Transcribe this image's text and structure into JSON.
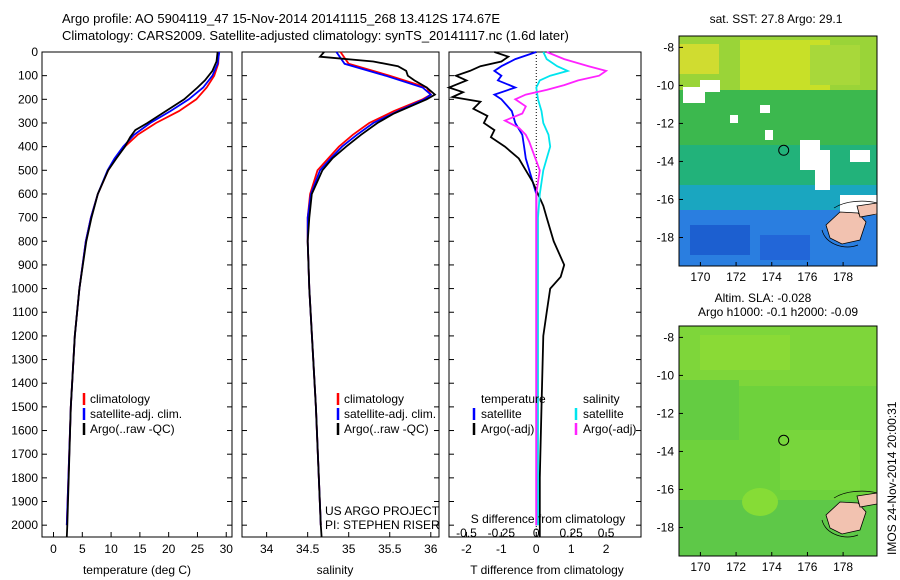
{
  "header": {
    "line1": "Argo profile: AO 5904119_47 15-Nov-2014 20141115_268 13.412S 174.67E",
    "line2": "Climatology: CARS2009. Satellite-adjusted climatology: synTS_20141117.nc (1.6d later)"
  },
  "colors": {
    "climatology": "#ff0000",
    "satellite": "#0000ff",
    "argo": "#000000",
    "sat_salinity": "#00e5ee",
    "argo_salinity_adj": "#ff22ff",
    "land": "#f2c2b0"
  },
  "panels": {
    "temperature": {
      "xlabel": "temperature (deg C)"
    },
    "salinity": {
      "xlabel": "salinity"
    },
    "difference": {
      "top_label": "S difference from climatology",
      "xlabel": "T difference from climatology",
      "project": "US ARGO PROJECT",
      "pi": "PI: STEPHEN RISER"
    }
  },
  "legends": {
    "temperature": [
      "climatology",
      "satellite-adj. clim.",
      "Argo(..raw -QC)"
    ],
    "salinity": [
      "climatology",
      "satellite-adj. clim.",
      "Argo(..raw -QC)"
    ],
    "difference": {
      "temp_head": "temperature",
      "sal_head": "salinity",
      "temp_sat": "satellite",
      "temp_argo": "Argo(-adj)",
      "sal_sat": "satellite",
      "sal_argo": "Argo(-adj)"
    }
  },
  "maps": {
    "sst": {
      "title": "sat. SST: 27.8 Argo: 29.1",
      "profile_lon": 174.67,
      "profile_lat": -13.412
    },
    "sla": {
      "title1": "Altim. SLA: -0.028",
      "title2": "Argo h1000: -0.1 h2000: -0.09",
      "profile_lon": 174.67,
      "profile_lat": -13.412
    },
    "xticks": [
      "170",
      "172",
      "174",
      "176",
      "178"
    ],
    "yticks": [
      "-8",
      "-10",
      "-12",
      "-14",
      "-16",
      "-18"
    ],
    "credit": "IMOS 24-Nov-2014 20:00:31"
  },
  "chart_data": [
    {
      "type": "line",
      "name": "temperature",
      "ylim": [
        0,
        2050
      ],
      "xlim": [
        -2,
        31
      ],
      "yticks": [
        0,
        100,
        200,
        300,
        400,
        500,
        600,
        700,
        800,
        900,
        1000,
        1100,
        1200,
        1300,
        1400,
        1500,
        1600,
        1700,
        1800,
        1900,
        2000
      ],
      "xticks": [
        0,
        5,
        10,
        15,
        20,
        25,
        30
      ],
      "series": [
        {
          "name": "climatology",
          "depth": [
            0,
            50,
            100,
            150,
            200,
            250,
            300,
            350,
            400,
            450,
            500,
            600,
            700,
            800,
            1000,
            1200,
            1500,
            2000
          ],
          "values": [
            28.7,
            28.6,
            27.9,
            26.6,
            24.8,
            21.8,
            17.8,
            14.6,
            12.4,
            10.8,
            9.5,
            7.7,
            6.5,
            5.6,
            4.5,
            3.7,
            3.0,
            2.3
          ]
        },
        {
          "name": "satellite-adj. clim.",
          "depth": [
            0,
            50,
            100,
            150,
            200,
            250,
            300,
            350,
            400,
            450,
            500,
            600,
            700,
            800,
            1000,
            1200,
            1500,
            2000
          ],
          "values": [
            28.8,
            28.5,
            27.6,
            26.0,
            23.5,
            20.3,
            16.8,
            14.0,
            12.1,
            10.6,
            9.4,
            7.7,
            6.5,
            5.6,
            4.5,
            3.7,
            3.0,
            2.3
          ]
        },
        {
          "name": "Argo(..raw -QC)",
          "depth": [
            0,
            40,
            80,
            120,
            150,
            200,
            250,
            300,
            330,
            360,
            400,
            450,
            500,
            600,
            700,
            800,
            1000,
            1200,
            1500,
            2000,
            2050
          ],
          "values": [
            28.5,
            28.3,
            27.6,
            26.3,
            25.0,
            22.7,
            19.5,
            16.3,
            14.2,
            13.3,
            12.4,
            10.9,
            9.5,
            7.7,
            6.6,
            5.7,
            4.5,
            3.7,
            3.0,
            2.4,
            2.3
          ]
        }
      ]
    },
    {
      "type": "line",
      "name": "salinity",
      "ylim": [
        0,
        2050
      ],
      "xlim": [
        33.7,
        36.1
      ],
      "xticks": [
        34,
        34.5,
        35,
        35.5,
        36
      ],
      "series": [
        {
          "name": "climatology",
          "depth": [
            0,
            50,
            100,
            150,
            180,
            200,
            250,
            300,
            350,
            400,
            450,
            500,
            600,
            700,
            800,
            1000,
            1500,
            2000
          ],
          "values": [
            34.9,
            35.0,
            35.5,
            35.95,
            36.0,
            35.9,
            35.55,
            35.25,
            35.05,
            34.88,
            34.75,
            34.62,
            34.53,
            34.5,
            34.5,
            34.52,
            34.6,
            34.66
          ]
        },
        {
          "name": "satellite-adj. clim.",
          "depth": [
            0,
            50,
            100,
            150,
            180,
            200,
            250,
            300,
            350,
            400,
            450,
            500,
            600,
            700,
            800,
            1000,
            1500,
            2000
          ],
          "values": [
            34.85,
            34.95,
            35.45,
            35.9,
            36.0,
            35.92,
            35.6,
            35.3,
            35.1,
            34.92,
            34.78,
            34.65,
            34.54,
            34.5,
            34.5,
            34.52,
            34.6,
            34.66
          ]
        },
        {
          "name": "Argo(..raw -QC)",
          "depth": [
            0,
            20,
            40,
            60,
            80,
            100,
            120,
            150,
            180,
            200,
            230,
            260,
            300,
            350,
            400,
            450,
            500,
            600,
            700,
            800,
            1000,
            1500,
            2000,
            2050
          ],
          "values": [
            34.7,
            34.65,
            35.3,
            35.6,
            35.7,
            35.72,
            35.8,
            35.95,
            36.05,
            35.95,
            35.75,
            35.55,
            35.35,
            35.15,
            34.97,
            34.8,
            34.68,
            34.55,
            34.52,
            34.5,
            34.52,
            34.6,
            34.66,
            34.67
          ]
        }
      ]
    },
    {
      "type": "line",
      "name": "difference",
      "ylim": [
        0,
        2050
      ],
      "xlim": [
        -2.5,
        3.0
      ],
      "xticks": [
        -2,
        -1,
        0,
        1,
        2
      ],
      "xticks_top": [
        "-0.5",
        "-0.25",
        "0",
        "0.25",
        "0.5"
      ],
      "series": [
        {
          "name": "temperature satellite",
          "depth": [
            0,
            30,
            60,
            80,
            100,
            120,
            150,
            180,
            200,
            250,
            300,
            350,
            400,
            450,
            500,
            600,
            700,
            800,
            1000,
            1500,
            2000
          ],
          "values": [
            0.0,
            -0.6,
            -1.0,
            -1.2,
            -1.0,
            -1.1,
            -0.6,
            -1.2,
            -1.0,
            -0.7,
            -0.6,
            -0.4,
            -0.35,
            -0.3,
            -0.2,
            0.0,
            0.0,
            0.0,
            0.0,
            0.0,
            0.0
          ]
        },
        {
          "name": "temperature Argo(-adj)",
          "depth": [
            0,
            20,
            40,
            60,
            80,
            100,
            120,
            150,
            170,
            190,
            210,
            240,
            270,
            300,
            330,
            360,
            400,
            450,
            500,
            550,
            600,
            650,
            700,
            800,
            900,
            950,
            1000,
            1100,
            1200,
            1500,
            1800,
            2000,
            2050
          ],
          "values": [
            -1.2,
            -0.8,
            -1.0,
            -1.6,
            -1.9,
            -2.3,
            -2.0,
            -2.5,
            -2.1,
            -2.4,
            -1.6,
            -1.8,
            -1.4,
            -1.5,
            -1.2,
            -1.3,
            -0.9,
            -0.5,
            -0.3,
            -0.1,
            0.05,
            0.2,
            0.3,
            0.5,
            0.8,
            0.7,
            0.4,
            0.3,
            0.2,
            0.15,
            0.1,
            0.1,
            0.1
          ]
        },
        {
          "name": "salinity satellite",
          "depth": [
            0,
            30,
            60,
            80,
            100,
            120,
            150,
            200,
            250,
            300,
            350,
            400,
            450,
            500,
            600,
            700,
            800,
            1000,
            1500,
            2000
          ],
          "values": [
            0.2,
            0.3,
            0.6,
            0.9,
            0.4,
            0.1,
            0.0,
            0.05,
            0.15,
            0.2,
            0.35,
            0.4,
            0.3,
            0.2,
            0.1,
            0.05,
            0.05,
            0.05,
            0.05,
            0.05
          ]
        },
        {
          "name": "salinity Argo(-adj)",
          "depth": [
            0,
            30,
            60,
            80,
            100,
            120,
            140,
            160,
            180,
            200,
            230,
            260,
            290,
            320,
            350,
            380,
            420,
            460,
            500,
            550,
            600,
            700,
            800,
            1000,
            1500,
            2000
          ],
          "values": [
            0.3,
            0.8,
            1.5,
            2.0,
            1.8,
            1.2,
            0.8,
            0.3,
            -0.3,
            -0.6,
            -0.3,
            -0.4,
            -0.9,
            -0.5,
            -0.3,
            -0.2,
            -0.1,
            0.0,
            0.1,
            0.05,
            0.0,
            0.0,
            0.0,
            0.0,
            0.0,
            0.0
          ]
        }
      ]
    }
  ]
}
